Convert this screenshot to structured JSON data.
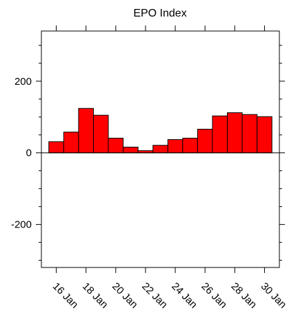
{
  "chart_data": {
    "type": "bar",
    "title": "EPO Index",
    "categories": [
      "16 Jan",
      null,
      "18 Jan",
      null,
      "20 Jan",
      null,
      "22 Jan",
      null,
      "24 Jan",
      null,
      "26 Jan",
      null,
      "28 Jan",
      null,
      "30 Jan"
    ],
    "values": [
      31,
      58,
      124,
      105,
      41,
      16,
      6,
      21,
      37,
      41,
      66,
      103,
      112,
      107,
      101
    ],
    "color": "#ff0000",
    "ylim": [
      -320,
      340
    ],
    "yticks": [
      -200,
      0,
      200
    ],
    "yminorticks": [
      -300,
      -250,
      -150,
      -100,
      -50,
      50,
      100,
      150,
      250,
      300
    ]
  }
}
